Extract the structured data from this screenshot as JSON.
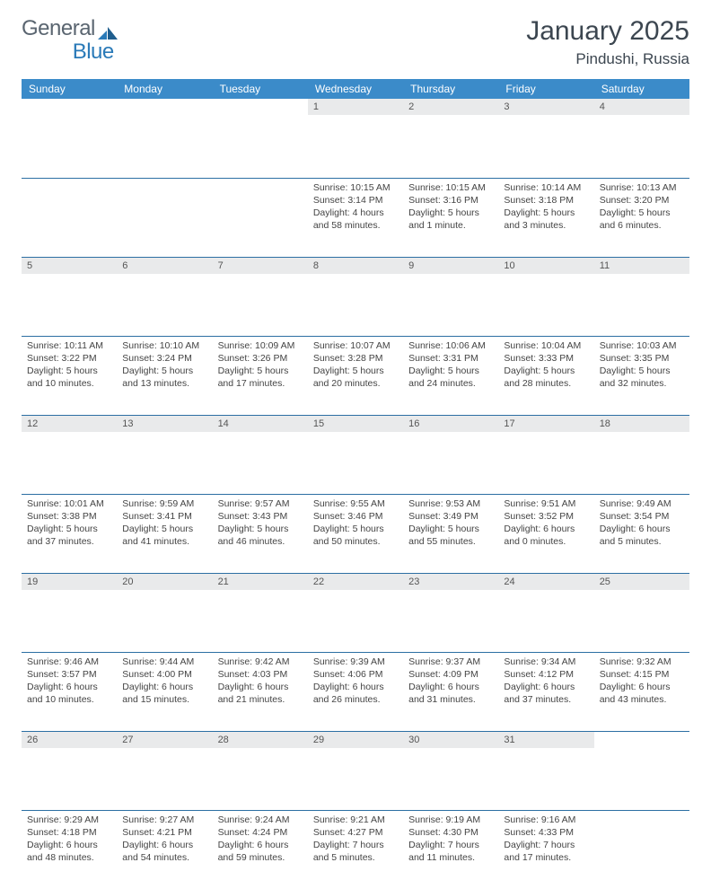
{
  "brand": {
    "part1": "General",
    "part2": "Blue"
  },
  "title": "January 2025",
  "location": "Pindushi, Russia",
  "colors": {
    "header_bg": "#3b8bc9",
    "header_text": "#ffffff",
    "daynum_bg": "#e9eaeb",
    "daynum_text": "#555555",
    "body_text": "#444444",
    "divider": "#2c6fa3",
    "title_color": "#3c4650",
    "logo_gray": "#5a6570",
    "logo_blue": "#2a7ab8"
  },
  "days_of_week": [
    "Sunday",
    "Monday",
    "Tuesday",
    "Wednesday",
    "Thursday",
    "Friday",
    "Saturday"
  ],
  "weeks": [
    [
      null,
      null,
      null,
      {
        "n": "1",
        "sunrise": "10:15 AM",
        "sunset": "3:14 PM",
        "daylight": "4 hours and 58 minutes."
      },
      {
        "n": "2",
        "sunrise": "10:15 AM",
        "sunset": "3:16 PM",
        "daylight": "5 hours and 1 minute."
      },
      {
        "n": "3",
        "sunrise": "10:14 AM",
        "sunset": "3:18 PM",
        "daylight": "5 hours and 3 minutes."
      },
      {
        "n": "4",
        "sunrise": "10:13 AM",
        "sunset": "3:20 PM",
        "daylight": "5 hours and 6 minutes."
      }
    ],
    [
      {
        "n": "5",
        "sunrise": "10:11 AM",
        "sunset": "3:22 PM",
        "daylight": "5 hours and 10 minutes."
      },
      {
        "n": "6",
        "sunrise": "10:10 AM",
        "sunset": "3:24 PM",
        "daylight": "5 hours and 13 minutes."
      },
      {
        "n": "7",
        "sunrise": "10:09 AM",
        "sunset": "3:26 PM",
        "daylight": "5 hours and 17 minutes."
      },
      {
        "n": "8",
        "sunrise": "10:07 AM",
        "sunset": "3:28 PM",
        "daylight": "5 hours and 20 minutes."
      },
      {
        "n": "9",
        "sunrise": "10:06 AM",
        "sunset": "3:31 PM",
        "daylight": "5 hours and 24 minutes."
      },
      {
        "n": "10",
        "sunrise": "10:04 AM",
        "sunset": "3:33 PM",
        "daylight": "5 hours and 28 minutes."
      },
      {
        "n": "11",
        "sunrise": "10:03 AM",
        "sunset": "3:35 PM",
        "daylight": "5 hours and 32 minutes."
      }
    ],
    [
      {
        "n": "12",
        "sunrise": "10:01 AM",
        "sunset": "3:38 PM",
        "daylight": "5 hours and 37 minutes."
      },
      {
        "n": "13",
        "sunrise": "9:59 AM",
        "sunset": "3:41 PM",
        "daylight": "5 hours and 41 minutes."
      },
      {
        "n": "14",
        "sunrise": "9:57 AM",
        "sunset": "3:43 PM",
        "daylight": "5 hours and 46 minutes."
      },
      {
        "n": "15",
        "sunrise": "9:55 AM",
        "sunset": "3:46 PM",
        "daylight": "5 hours and 50 minutes."
      },
      {
        "n": "16",
        "sunrise": "9:53 AM",
        "sunset": "3:49 PM",
        "daylight": "5 hours and 55 minutes."
      },
      {
        "n": "17",
        "sunrise": "9:51 AM",
        "sunset": "3:52 PM",
        "daylight": "6 hours and 0 minutes."
      },
      {
        "n": "18",
        "sunrise": "9:49 AM",
        "sunset": "3:54 PM",
        "daylight": "6 hours and 5 minutes."
      }
    ],
    [
      {
        "n": "19",
        "sunrise": "9:46 AM",
        "sunset": "3:57 PM",
        "daylight": "6 hours and 10 minutes."
      },
      {
        "n": "20",
        "sunrise": "9:44 AM",
        "sunset": "4:00 PM",
        "daylight": "6 hours and 15 minutes."
      },
      {
        "n": "21",
        "sunrise": "9:42 AM",
        "sunset": "4:03 PM",
        "daylight": "6 hours and 21 minutes."
      },
      {
        "n": "22",
        "sunrise": "9:39 AM",
        "sunset": "4:06 PM",
        "daylight": "6 hours and 26 minutes."
      },
      {
        "n": "23",
        "sunrise": "9:37 AM",
        "sunset": "4:09 PM",
        "daylight": "6 hours and 31 minutes."
      },
      {
        "n": "24",
        "sunrise": "9:34 AM",
        "sunset": "4:12 PM",
        "daylight": "6 hours and 37 minutes."
      },
      {
        "n": "25",
        "sunrise": "9:32 AM",
        "sunset": "4:15 PM",
        "daylight": "6 hours and 43 minutes."
      }
    ],
    [
      {
        "n": "26",
        "sunrise": "9:29 AM",
        "sunset": "4:18 PM",
        "daylight": "6 hours and 48 minutes."
      },
      {
        "n": "27",
        "sunrise": "9:27 AM",
        "sunset": "4:21 PM",
        "daylight": "6 hours and 54 minutes."
      },
      {
        "n": "28",
        "sunrise": "9:24 AM",
        "sunset": "4:24 PM",
        "daylight": "6 hours and 59 minutes."
      },
      {
        "n": "29",
        "sunrise": "9:21 AM",
        "sunset": "4:27 PM",
        "daylight": "7 hours and 5 minutes."
      },
      {
        "n": "30",
        "sunrise": "9:19 AM",
        "sunset": "4:30 PM",
        "daylight": "7 hours and 11 minutes."
      },
      {
        "n": "31",
        "sunrise": "9:16 AM",
        "sunset": "4:33 PM",
        "daylight": "7 hours and 17 minutes."
      },
      null
    ]
  ],
  "labels": {
    "sunrise": "Sunrise:",
    "sunset": "Sunset:",
    "daylight": "Daylight:"
  }
}
